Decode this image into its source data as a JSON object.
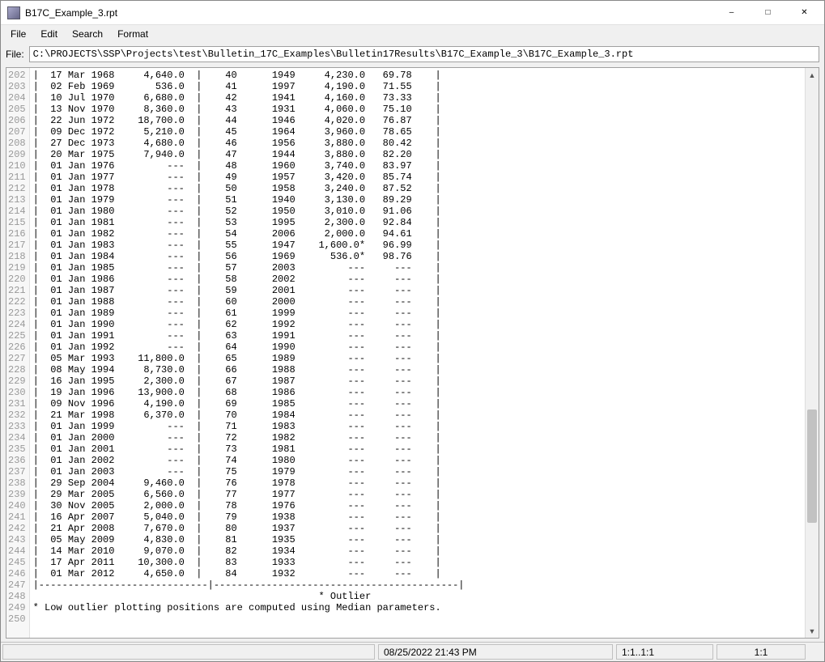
{
  "window": {
    "title": "B17C_Example_3.rpt"
  },
  "menu": {
    "items": [
      "File",
      "Edit",
      "Search",
      "Format"
    ]
  },
  "file": {
    "label": "File:",
    "path": "C:\\PROJECTS\\SSP\\Projects\\test\\Bulletin_17C_Examples\\Bulletin17Results\\B17C_Example_3\\B17C_Example_3.rpt"
  },
  "editor": {
    "first_line": 202,
    "rows": [
      {
        "d": "17 Mar 1968",
        "v": "4,640.0",
        "n": "40",
        "y": "1949",
        "p": "4,230.0",
        "pct": "69.78"
      },
      {
        "d": "02 Feb 1969",
        "v": "536.0",
        "n": "41",
        "y": "1997",
        "p": "4,190.0",
        "pct": "71.55"
      },
      {
        "d": "10 Jul 1970",
        "v": "6,680.0",
        "n": "42",
        "y": "1941",
        "p": "4,160.0",
        "pct": "73.33"
      },
      {
        "d": "13 Nov 1970",
        "v": "8,360.0",
        "n": "43",
        "y": "1931",
        "p": "4,060.0",
        "pct": "75.10"
      },
      {
        "d": "22 Jun 1972",
        "v": "18,700.0",
        "n": "44",
        "y": "1946",
        "p": "4,020.0",
        "pct": "76.87"
      },
      {
        "d": "09 Dec 1972",
        "v": "5,210.0",
        "n": "45",
        "y": "1964",
        "p": "3,960.0",
        "pct": "78.65"
      },
      {
        "d": "27 Dec 1973",
        "v": "4,680.0",
        "n": "46",
        "y": "1956",
        "p": "3,880.0",
        "pct": "80.42"
      },
      {
        "d": "20 Mar 1975",
        "v": "7,940.0",
        "n": "47",
        "y": "1944",
        "p": "3,880.0",
        "pct": "82.20"
      },
      {
        "d": "01 Jan 1976",
        "v": "---",
        "n": "48",
        "y": "1960",
        "p": "3,740.0",
        "pct": "83.97"
      },
      {
        "d": "01 Jan 1977",
        "v": "---",
        "n": "49",
        "y": "1957",
        "p": "3,420.0",
        "pct": "85.74"
      },
      {
        "d": "01 Jan 1978",
        "v": "---",
        "n": "50",
        "y": "1958",
        "p": "3,240.0",
        "pct": "87.52"
      },
      {
        "d": "01 Jan 1979",
        "v": "---",
        "n": "51",
        "y": "1940",
        "p": "3,130.0",
        "pct": "89.29"
      },
      {
        "d": "01 Jan 1980",
        "v": "---",
        "n": "52",
        "y": "1950",
        "p": "3,010.0",
        "pct": "91.06"
      },
      {
        "d": "01 Jan 1981",
        "v": "---",
        "n": "53",
        "y": "1995",
        "p": "2,300.0",
        "pct": "92.84"
      },
      {
        "d": "01 Jan 1982",
        "v": "---",
        "n": "54",
        "y": "2006",
        "p": "2,000.0",
        "pct": "94.61"
      },
      {
        "d": "01 Jan 1983",
        "v": "---",
        "n": "55",
        "y": "1947",
        "p": "1,600.0*",
        "pct": "96.99"
      },
      {
        "d": "01 Jan 1984",
        "v": "---",
        "n": "56",
        "y": "1969",
        "p": "536.0*",
        "pct": "98.76"
      },
      {
        "d": "01 Jan 1985",
        "v": "---",
        "n": "57",
        "y": "2003",
        "p": "---",
        "pct": "---"
      },
      {
        "d": "01 Jan 1986",
        "v": "---",
        "n": "58",
        "y": "2002",
        "p": "---",
        "pct": "---"
      },
      {
        "d": "01 Jan 1987",
        "v": "---",
        "n": "59",
        "y": "2001",
        "p": "---",
        "pct": "---"
      },
      {
        "d": "01 Jan 1988",
        "v": "---",
        "n": "60",
        "y": "2000",
        "p": "---",
        "pct": "---"
      },
      {
        "d": "01 Jan 1989",
        "v": "---",
        "n": "61",
        "y": "1999",
        "p": "---",
        "pct": "---"
      },
      {
        "d": "01 Jan 1990",
        "v": "---",
        "n": "62",
        "y": "1992",
        "p": "---",
        "pct": "---"
      },
      {
        "d": "01 Jan 1991",
        "v": "---",
        "n": "63",
        "y": "1991",
        "p": "---",
        "pct": "---"
      },
      {
        "d": "01 Jan 1992",
        "v": "---",
        "n": "64",
        "y": "1990",
        "p": "---",
        "pct": "---"
      },
      {
        "d": "05 Mar 1993",
        "v": "11,800.0",
        "n": "65",
        "y": "1989",
        "p": "---",
        "pct": "---"
      },
      {
        "d": "08 May 1994",
        "v": "8,730.0",
        "n": "66",
        "y": "1988",
        "p": "---",
        "pct": "---"
      },
      {
        "d": "16 Jan 1995",
        "v": "2,300.0",
        "n": "67",
        "y": "1987",
        "p": "---",
        "pct": "---"
      },
      {
        "d": "19 Jan 1996",
        "v": "13,900.0",
        "n": "68",
        "y": "1986",
        "p": "---",
        "pct": "---"
      },
      {
        "d": "09 Nov 1996",
        "v": "4,190.0",
        "n": "69",
        "y": "1985",
        "p": "---",
        "pct": "---"
      },
      {
        "d": "21 Mar 1998",
        "v": "6,370.0",
        "n": "70",
        "y": "1984",
        "p": "---",
        "pct": "---"
      },
      {
        "d": "01 Jan 1999",
        "v": "---",
        "n": "71",
        "y": "1983",
        "p": "---",
        "pct": "---"
      },
      {
        "d": "01 Jan 2000",
        "v": "---",
        "n": "72",
        "y": "1982",
        "p": "---",
        "pct": "---"
      },
      {
        "d": "01 Jan 2001",
        "v": "---",
        "n": "73",
        "y": "1981",
        "p": "---",
        "pct": "---"
      },
      {
        "d": "01 Jan 2002",
        "v": "---",
        "n": "74",
        "y": "1980",
        "p": "---",
        "pct": "---"
      },
      {
        "d": "01 Jan 2003",
        "v": "---",
        "n": "75",
        "y": "1979",
        "p": "---",
        "pct": "---"
      },
      {
        "d": "29 Sep 2004",
        "v": "9,460.0",
        "n": "76",
        "y": "1978",
        "p": "---",
        "pct": "---"
      },
      {
        "d": "29 Mar 2005",
        "v": "6,560.0",
        "n": "77",
        "y": "1977",
        "p": "---",
        "pct": "---"
      },
      {
        "d": "30 Nov 2005",
        "v": "2,000.0",
        "n": "78",
        "y": "1976",
        "p": "---",
        "pct": "---"
      },
      {
        "d": "16 Apr 2007",
        "v": "5,040.0",
        "n": "79",
        "y": "1938",
        "p": "---",
        "pct": "---"
      },
      {
        "d": "21 Apr 2008",
        "v": "7,670.0",
        "n": "80",
        "y": "1937",
        "p": "---",
        "pct": "---"
      },
      {
        "d": "05 May 2009",
        "v": "4,830.0",
        "n": "81",
        "y": "1935",
        "p": "---",
        "pct": "---"
      },
      {
        "d": "14 Mar 2010",
        "v": "9,070.0",
        "n": "82",
        "y": "1934",
        "p": "---",
        "pct": "---"
      },
      {
        "d": "17 Apr 2011",
        "v": "10,300.0",
        "n": "83",
        "y": "1933",
        "p": "---",
        "pct": "---"
      },
      {
        "d": "01 Mar 2012",
        "v": "4,650.0",
        "n": "84",
        "y": "1932",
        "p": "---",
        "pct": "---"
      }
    ],
    "footer": {
      "sep": "|-----------------------------|------------------------------------------|",
      "outlier": "                                                 * Outlier",
      "note": "* Low outlier plotting positions are computed using Median parameters."
    }
  },
  "status": {
    "datetime": "08/25/2022 21:43 PM",
    "sel": "1:1..1:1",
    "pos": "1:1"
  }
}
